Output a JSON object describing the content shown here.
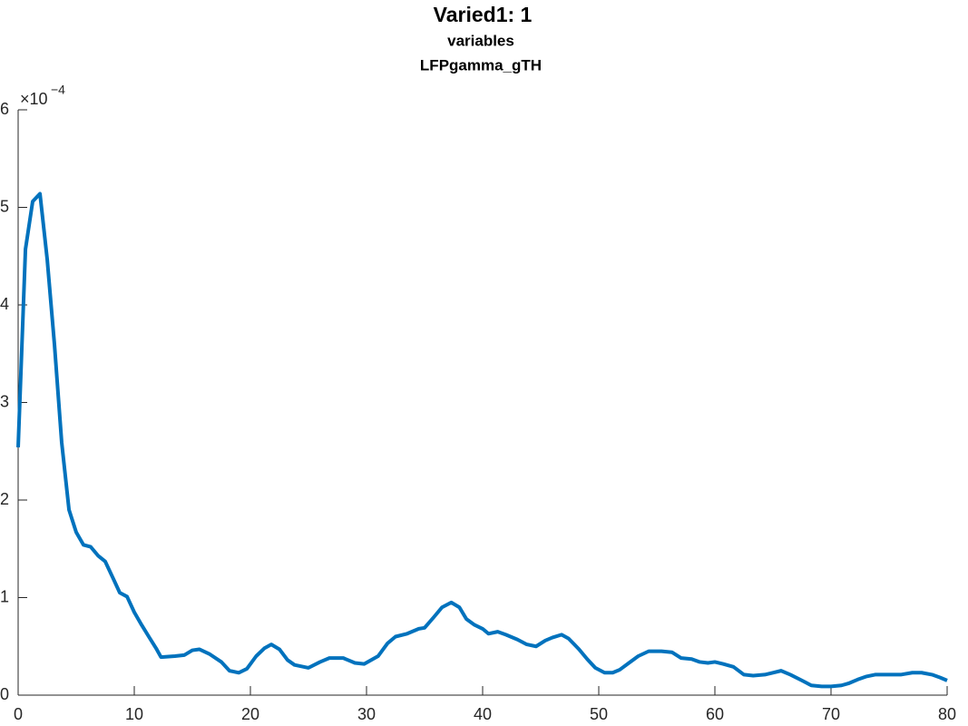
{
  "chart_data": {
    "type": "line",
    "title": "Varied1: 1",
    "subtitle": "variables",
    "subtitle2": "LFPgamma_gTH",
    "y_multiplier_base": "×10",
    "y_multiplier_exponent": "−4",
    "xlim": [
      0,
      80
    ],
    "xticks": [
      0,
      10,
      20,
      30,
      40,
      50,
      60,
      70,
      80
    ],
    "ylim": [
      0,
      6
    ],
    "yticks": [
      0,
      1,
      2,
      3,
      4,
      5,
      6
    ],
    "grid": false,
    "series": [
      {
        "color": "#0072bd",
        "x": [
          0,
          0.63,
          1.25,
          1.88,
          2.5,
          3.13,
          3.75,
          4.38,
          5,
          5.63,
          6.25,
          6.88,
          7.5,
          8.13,
          8.75,
          9.38,
          10,
          10.63,
          11.25,
          11.88,
          12.3,
          13.5,
          14.3,
          15,
          15.6,
          16.5,
          17.5,
          18.2,
          19,
          19.7,
          20.5,
          21.2,
          21.8,
          22.5,
          23.2,
          23.8,
          25,
          26,
          26.8,
          28,
          29,
          29.8,
          31,
          31.8,
          32.5,
          33.5,
          34.5,
          35,
          35.8,
          36.5,
          37.3,
          38,
          38.6,
          39.3,
          40,
          40.5,
          41.3,
          42,
          43,
          43.8,
          44.6,
          45.4,
          46,
          46.8,
          47.4,
          48.3,
          49,
          49.7,
          50.5,
          51.2,
          51.8,
          52.6,
          53.4,
          54.3,
          55.4,
          56.3,
          57.1,
          58,
          58.7,
          59.4,
          60,
          60.7,
          61.6,
          62.5,
          63.3,
          64.3,
          65,
          65.7,
          66.5,
          67.5,
          68.3,
          69.2,
          70,
          70.9,
          71.5,
          72.3,
          73,
          73.8,
          75,
          76,
          77,
          77.8,
          78.7,
          79.4,
          80
        ],
        "values": [
          2.54,
          4.57,
          5.06,
          5.14,
          4.47,
          3.59,
          2.59,
          1.9,
          1.67,
          1.54,
          1.52,
          1.43,
          1.37,
          1.21,
          1.05,
          1.01,
          0.85,
          0.72,
          0.6,
          0.48,
          0.39,
          0.4,
          0.41,
          0.46,
          0.47,
          0.42,
          0.34,
          0.25,
          0.23,
          0.27,
          0.4,
          0.48,
          0.52,
          0.47,
          0.36,
          0.31,
          0.28,
          0.34,
          0.38,
          0.38,
          0.33,
          0.32,
          0.4,
          0.53,
          0.6,
          0.63,
          0.68,
          0.69,
          0.8,
          0.9,
          0.95,
          0.9,
          0.78,
          0.72,
          0.68,
          0.63,
          0.65,
          0.62,
          0.57,
          0.52,
          0.5,
          0.56,
          0.59,
          0.62,
          0.58,
          0.47,
          0.37,
          0.28,
          0.23,
          0.23,
          0.26,
          0.33,
          0.4,
          0.45,
          0.45,
          0.44,
          0.38,
          0.37,
          0.34,
          0.33,
          0.34,
          0.32,
          0.29,
          0.21,
          0.2,
          0.21,
          0.23,
          0.25,
          0.21,
          0.15,
          0.1,
          0.09,
          0.09,
          0.1,
          0.12,
          0.16,
          0.19,
          0.21,
          0.21,
          0.21,
          0.23,
          0.23,
          0.21,
          0.18,
          0.15
        ]
      }
    ]
  }
}
